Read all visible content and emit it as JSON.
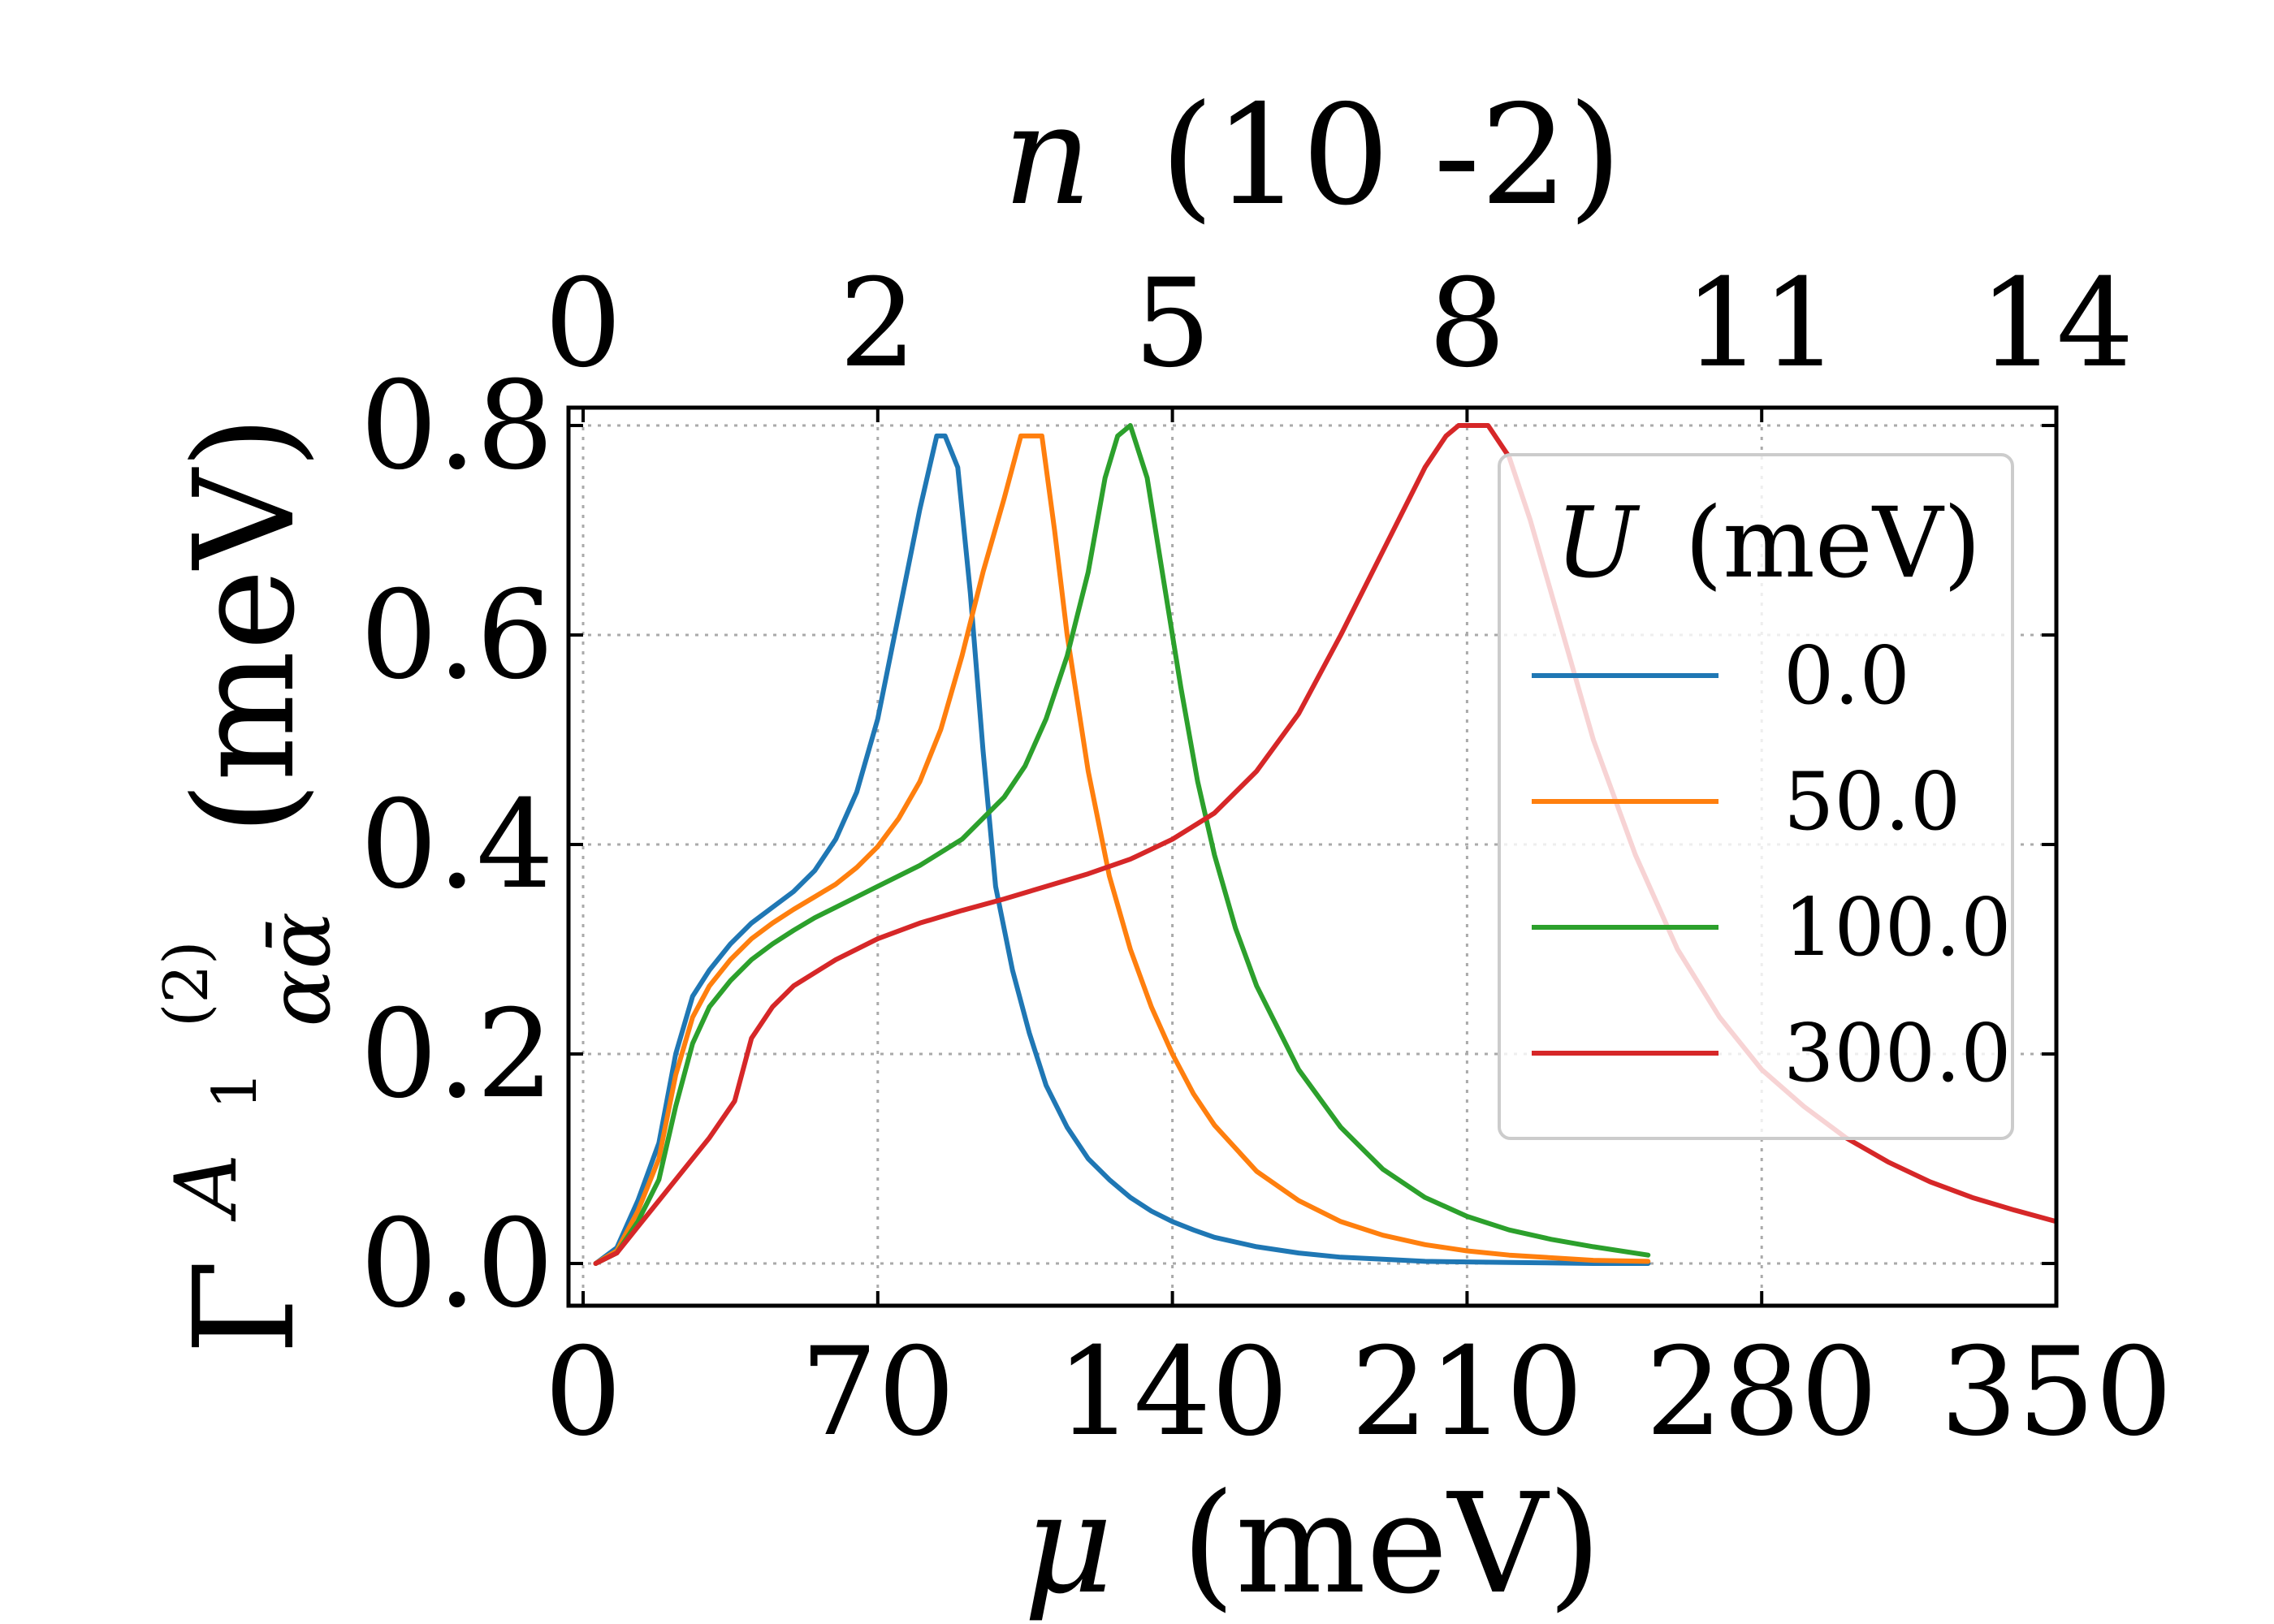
{
  "chart_data": {
    "type": "line",
    "xlabel_symbol": "μ",
    "xlabel_unit": "(meV)",
    "x2label_symbol": "n",
    "x2label_unit": "(10 -2)",
    "ylabel_base": "Γ",
    "ylabel_sup": "A",
    "ylabel_sup_sub": "1",
    "ylabel_sup_order": "(2)",
    "ylabel_sub": "αᾱ",
    "ylabel_unit": "(meV)",
    "xlim": [
      0,
      350
    ],
    "ylim": [
      -0.04,
      0.8
    ],
    "xticks": [
      0,
      70,
      140,
      210,
      280,
      350
    ],
    "xtick_labels": [
      "0",
      "70",
      "140",
      "210",
      "280",
      "350"
    ],
    "yticks": [
      0.0,
      0.2,
      0.4,
      0.6,
      0.8
    ],
    "ytick_labels": [
      "0.0",
      "0.2",
      "0.4",
      "0.6",
      "0.8"
    ],
    "x2ticks": [
      0,
      70,
      140,
      210,
      280,
      350
    ],
    "x2tick_labels": [
      "0",
      "2",
      "5",
      "8",
      "11",
      "14"
    ],
    "grid": true,
    "legend": {
      "title_symbol": "U",
      "title_unit": "(meV)",
      "placement": "upper-right"
    },
    "series": [
      {
        "name": "0.0",
        "color": "#1f77b4",
        "x": [
          3,
          8,
          13,
          18,
          22,
          26,
          30,
          35,
          40,
          45,
          50,
          55,
          60,
          65,
          70,
          75,
          80,
          84,
          86,
          89,
          92,
          95,
          98,
          102,
          106,
          110,
          115,
          120,
          125,
          130,
          135,
          140,
          145,
          150,
          160,
          170,
          180,
          190,
          200,
          220,
          240,
          253
        ],
        "y": [
          0.0,
          0.015,
          0.06,
          0.115,
          0.2,
          0.255,
          0.28,
          0.305,
          0.325,
          0.34,
          0.355,
          0.375,
          0.405,
          0.45,
          0.52,
          0.62,
          0.72,
          0.79,
          0.79,
          0.76,
          0.64,
          0.49,
          0.36,
          0.28,
          0.22,
          0.17,
          0.13,
          0.1,
          0.08,
          0.063,
          0.05,
          0.04,
          0.032,
          0.025,
          0.016,
          0.01,
          0.006,
          0.004,
          0.002,
          0.001,
          0.0,
          0.0
        ]
      },
      {
        "name": "50.0",
        "color": "#ff7f0e",
        "x": [
          3,
          8,
          13,
          18,
          22,
          26,
          30,
          35,
          40,
          45,
          50,
          55,
          60,
          65,
          70,
          75,
          80,
          85,
          90,
          95,
          100,
          104,
          106,
          109,
          112,
          115,
          120,
          125,
          130,
          135,
          140,
          145,
          150,
          160,
          170,
          180,
          190,
          200,
          210,
          220,
          240,
          253
        ],
        "y": [
          0.0,
          0.012,
          0.05,
          0.1,
          0.18,
          0.235,
          0.265,
          0.29,
          0.31,
          0.325,
          0.338,
          0.35,
          0.362,
          0.378,
          0.398,
          0.425,
          0.46,
          0.51,
          0.58,
          0.66,
          0.73,
          0.79,
          0.79,
          0.79,
          0.7,
          0.6,
          0.47,
          0.37,
          0.3,
          0.245,
          0.2,
          0.162,
          0.132,
          0.088,
          0.06,
          0.04,
          0.027,
          0.018,
          0.012,
          0.008,
          0.003,
          0.002
        ]
      },
      {
        "name": "100.0",
        "color": "#2ca02c",
        "x": [
          3,
          8,
          13,
          18,
          22,
          26,
          30,
          35,
          40,
          45,
          50,
          55,
          60,
          65,
          70,
          80,
          90,
          100,
          105,
          110,
          115,
          120,
          124,
          127,
          130,
          134,
          138,
          142,
          146,
          150,
          155,
          160,
          170,
          180,
          190,
          200,
          210,
          220,
          230,
          240,
          253
        ],
        "y": [
          0.0,
          0.01,
          0.04,
          0.08,
          0.15,
          0.21,
          0.245,
          0.27,
          0.29,
          0.305,
          0.318,
          0.33,
          0.34,
          0.35,
          0.36,
          0.38,
          0.405,
          0.445,
          0.475,
          0.52,
          0.58,
          0.66,
          0.75,
          0.79,
          0.8,
          0.75,
          0.65,
          0.55,
          0.46,
          0.39,
          0.32,
          0.265,
          0.185,
          0.13,
          0.09,
          0.063,
          0.045,
          0.032,
          0.023,
          0.016,
          0.008
        ]
      },
      {
        "name": "300.0",
        "color": "#d62728",
        "x": [
          3,
          8,
          13,
          18,
          24,
          30,
          36,
          40,
          45,
          50,
          60,
          70,
          80,
          90,
          100,
          110,
          120,
          130,
          140,
          150,
          160,
          170,
          180,
          190,
          200,
          205,
          208,
          212,
          215,
          220,
          225,
          230,
          240,
          250,
          260,
          270,
          280,
          290,
          300,
          310,
          320,
          330,
          340,
          350
        ],
        "y": [
          0.0,
          0.01,
          0.035,
          0.06,
          0.09,
          0.12,
          0.155,
          0.215,
          0.245,
          0.265,
          0.29,
          0.31,
          0.325,
          0.337,
          0.348,
          0.36,
          0.372,
          0.386,
          0.405,
          0.43,
          0.47,
          0.525,
          0.6,
          0.68,
          0.76,
          0.79,
          0.8,
          0.8,
          0.8,
          0.77,
          0.71,
          0.64,
          0.5,
          0.39,
          0.3,
          0.235,
          0.185,
          0.15,
          0.12,
          0.097,
          0.078,
          0.063,
          0.051,
          0.04
        ]
      }
    ]
  }
}
